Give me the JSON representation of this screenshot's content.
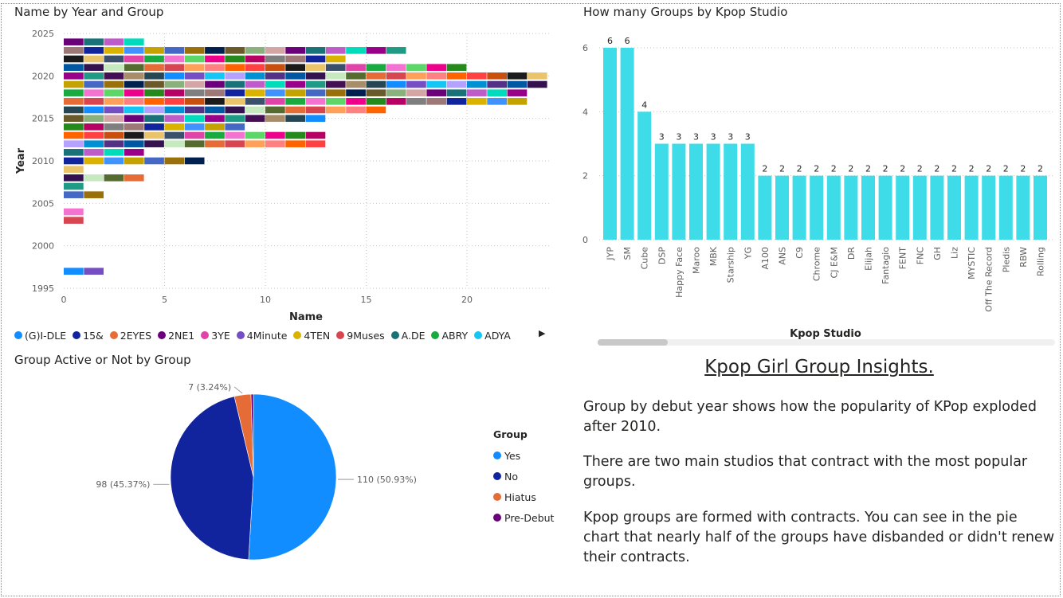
{
  "year_chart": {
    "title": "Name by Year and Group",
    "xlabel": "Name",
    "ylabel": "Year",
    "x_ticks": [
      "0",
      "5",
      "10",
      "15",
      "20"
    ],
    "y_ticks": [
      "2025",
      "2020",
      "2015",
      "2010",
      "2005",
      "2000",
      "1995"
    ],
    "legend_items": [
      {
        "label": "(G)I-DLE",
        "color": "#118DFF"
      },
      {
        "label": "15&",
        "color": "#12239E"
      },
      {
        "label": "2EYES",
        "color": "#E66C37"
      },
      {
        "label": "2NE1",
        "color": "#6B007B"
      },
      {
        "label": "3YE",
        "color": "#E044A7"
      },
      {
        "label": "4Minute",
        "color": "#744EC2"
      },
      {
        "label": "4TEN",
        "color": "#D9B300"
      },
      {
        "label": "9Muses",
        "color": "#D64550"
      },
      {
        "label": "A.DE",
        "color": "#197278"
      },
      {
        "label": "ABRY",
        "color": "#1AAB40"
      },
      {
        "label": "ADYA",
        "color": "#15C6F4"
      }
    ],
    "legend_more_icon": "triangle-right-icon"
  },
  "chart_data": [
    {
      "type": "bar",
      "orientation": "horizontal-stacked",
      "title": "Name by Year and Group",
      "xlabel": "Name",
      "ylabel": "Year",
      "xlim": [
        0,
        24
      ],
      "ylim": [
        1995,
        2025
      ],
      "years": [
        1997,
        2003,
        2004,
        2006,
        2007,
        2008,
        2009,
        2010,
        2011,
        2012,
        2013,
        2014,
        2015,
        2016,
        2017,
        2018,
        2019,
        2020,
        2021,
        2022,
        2023,
        2024
      ],
      "counts": [
        2,
        1,
        1,
        2,
        1,
        4,
        1,
        7,
        4,
        13,
        13,
        9,
        13,
        16,
        23,
        23,
        24,
        24,
        20,
        14,
        17,
        4
      ]
    },
    {
      "type": "bar",
      "title": "How many Groups by Kpop Studio",
      "xlabel": "Kpop Studio",
      "ylabel": "",
      "ylim": [
        0,
        6
      ],
      "y_ticks": [
        0,
        2,
        4,
        6
      ],
      "categories": [
        "JYP",
        "SM",
        "Cube",
        "DSP",
        "Happy Face",
        "Maroo",
        "MBK",
        "Starship",
        "YG",
        "A100",
        "ANS",
        "C9",
        "Chrome",
        "CJ E&M",
        "DR",
        "Elijah",
        "Fantagio",
        "FENT",
        "FNC",
        "GH",
        "Liz",
        "MYSTIC",
        "Off The Record",
        "Pledis",
        "RBW",
        "Rolling"
      ],
      "values": [
        6,
        6,
        4,
        3,
        3,
        3,
        3,
        3,
        3,
        2,
        2,
        2,
        2,
        2,
        2,
        2,
        2,
        2,
        2,
        2,
        2,
        2,
        2,
        2,
        2,
        2
      ],
      "color": "#3DDCE8"
    },
    {
      "type": "pie",
      "title": "Group Active or Not by Group",
      "legend_title": "Group",
      "slices": [
        {
          "label": "Yes",
          "value": 110,
          "display": "110 (50.93%)",
          "color": "#118DFF"
        },
        {
          "label": "No",
          "value": 98,
          "display": "98 (45.37%)",
          "color": "#12239E"
        },
        {
          "label": "Hiatus",
          "value": 7,
          "display": "7 (3.24%)",
          "color": "#E66C37"
        },
        {
          "label": "Pre-Debut",
          "value": 1,
          "display": "",
          "color": "#6B007B"
        }
      ]
    }
  ],
  "studio_chart": {
    "title": "How many Groups by Kpop Studio",
    "xlabel": "Kpop Studio"
  },
  "pie_chart": {
    "title": "Group Active or Not by Group",
    "legend_title": "Group"
  },
  "insights": {
    "title": "Kpop Girl Group Insights.",
    "paragraphs": [
      "Group by debut year shows how the popularity of KPop exploded after 2010.",
      "There are two main studios that contract with the most popular groups.",
      "Kpop groups are formed with contracts.  You can see in the pie chart that nearly half of the groups have disbanded or didn't renew their contracts."
    ]
  }
}
